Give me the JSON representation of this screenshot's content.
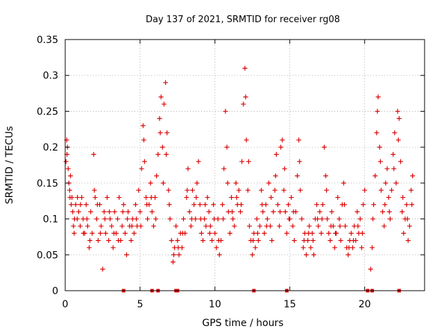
{
  "chart_data": {
    "type": "scatter",
    "title": "Day 137 of 2021, SRMTID for receiver rg08",
    "xlabel": "GPS time / hours",
    "ylabel": "SRMTID / TECUs",
    "xlim": [
      0,
      24
    ],
    "ylim": [
      0,
      0.35
    ],
    "xticks": [
      0,
      5,
      10,
      15,
      20
    ],
    "xtick_labels": [
      "0",
      "5",
      "10",
      "15",
      "20"
    ],
    "yticks": [
      0,
      0.05,
      0.1,
      0.15,
      0.2,
      0.25,
      0.3,
      0.35
    ],
    "ytick_labels": [
      "0",
      "0.05",
      "0.1",
      "0.15",
      "0.2",
      "0.25",
      "0.3",
      "0.35"
    ],
    "grid": true,
    "legend": "none",
    "marker": "+",
    "color": "#dd0000",
    "series": [
      {
        "name": "SRMTID",
        "points": [
          [
            0.05,
            0.18
          ],
          [
            0.1,
            0.21
          ],
          [
            0.15,
            0.2
          ],
          [
            0.2,
            0.17
          ],
          [
            0.25,
            0.15
          ],
          [
            0.3,
            0.14
          ],
          [
            0.35,
            0.16
          ],
          [
            0.4,
            0.12
          ],
          [
            0.45,
            0.13
          ],
          [
            0.5,
            0.11
          ],
          [
            0.55,
            0.09
          ],
          [
            0.6,
            0.08
          ],
          [
            0.7,
            0.12
          ],
          [
            0.8,
            0.1
          ],
          [
            0.9,
            0.11
          ],
          [
            1.0,
            0.09
          ],
          [
            1.1,
            0.13
          ],
          [
            1.2,
            0.1
          ],
          [
            1.3,
            0.08
          ],
          [
            1.4,
            0.12
          ],
          [
            1.5,
            0.09
          ],
          [
            1.6,
            0.06
          ],
          [
            1.7,
            0.11
          ],
          [
            1.8,
            0.08
          ],
          [
            1.9,
            0.19
          ],
          [
            2.0,
            0.13
          ],
          [
            2.1,
            0.1
          ],
          [
            2.2,
            0.07
          ],
          [
            2.3,
            0.12
          ],
          [
            2.4,
            0.09
          ],
          [
            2.5,
            0.03
          ],
          [
            2.6,
            0.11
          ],
          [
            2.7,
            0.08
          ],
          [
            2.8,
            0.13
          ],
          [
            2.9,
            0.07
          ],
          [
            3.0,
            0.1
          ],
          [
            3.1,
            0.09
          ],
          [
            3.2,
            0.06
          ],
          [
            3.3,
            0.11
          ],
          [
            3.4,
            0.08
          ],
          [
            3.5,
            0.1
          ],
          [
            3.6,
            0.13
          ],
          [
            3.7,
            0.07
          ],
          [
            3.8,
            0.09
          ],
          [
            3.9,
            0.12
          ],
          [
            4.0,
            0.08
          ],
          [
            4.1,
            0.05
          ],
          [
            4.2,
            0.11
          ],
          [
            4.3,
            0.09
          ],
          [
            4.4,
            0.07
          ],
          [
            4.5,
            0.1
          ],
          [
            4.6,
            0.08
          ],
          [
            4.7,
            0.12
          ],
          [
            4.8,
            0.09
          ],
          [
            4.9,
            0.14
          ],
          [
            5.0,
            0.11
          ],
          [
            5.1,
            0.17
          ],
          [
            5.2,
            0.23
          ],
          [
            5.3,
            0.18
          ],
          [
            5.4,
            0.13
          ],
          [
            5.5,
            0.1
          ],
          [
            5.6,
            0.12
          ],
          [
            5.7,
            0.15
          ],
          [
            5.8,
            0.11
          ],
          [
            5.9,
            0.09
          ],
          [
            6.0,
            0.13
          ],
          [
            6.1,
            0.16
          ],
          [
            6.2,
            0.19
          ],
          [
            6.3,
            0.24
          ],
          [
            6.4,
            0.27
          ],
          [
            6.5,
            0.2
          ],
          [
            6.6,
            0.26
          ],
          [
            6.7,
            0.29
          ],
          [
            6.8,
            0.22
          ],
          [
            6.9,
            0.14
          ],
          [
            7.0,
            0.1
          ],
          [
            7.1,
            0.07
          ],
          [
            7.2,
            0.04
          ],
          [
            7.3,
            0.06
          ],
          [
            7.4,
            0.09
          ],
          [
            7.5,
            0.07
          ],
          [
            7.6,
            0.05
          ],
          [
            7.7,
            0.08
          ],
          [
            7.8,
            0.06
          ],
          [
            7.9,
            0.1
          ],
          [
            8.0,
            0.08
          ],
          [
            8.1,
            0.13
          ],
          [
            8.2,
            0.17
          ],
          [
            8.3,
            0.11
          ],
          [
            8.4,
            0.09
          ],
          [
            8.5,
            0.14
          ],
          [
            8.6,
            0.12
          ],
          [
            8.7,
            0.1
          ],
          [
            8.8,
            0.15
          ],
          [
            8.9,
            0.18
          ],
          [
            9.0,
            0.12
          ],
          [
            9.1,
            0.08
          ],
          [
            9.2,
            0.07
          ],
          [
            9.3,
            0.1
          ],
          [
            9.4,
            0.09
          ],
          [
            9.5,
            0.13
          ],
          [
            9.6,
            0.11
          ],
          [
            9.7,
            0.09
          ],
          [
            9.8,
            0.07
          ],
          [
            9.9,
            0.12
          ],
          [
            10.0,
            0.08
          ],
          [
            10.1,
            0.06
          ],
          [
            10.2,
            0.1
          ],
          [
            10.3,
            0.05
          ],
          [
            10.4,
            0.07
          ],
          [
            10.5,
            0.12
          ],
          [
            10.6,
            0.17
          ],
          [
            10.7,
            0.25
          ],
          [
            10.8,
            0.2
          ],
          [
            10.9,
            0.11
          ],
          [
            11.0,
            0.08
          ],
          [
            11.1,
            0.13
          ],
          [
            11.2,
            0.1
          ],
          [
            11.3,
            0.09
          ],
          [
            11.4,
            0.15
          ],
          [
            11.5,
            0.12
          ],
          [
            11.6,
            0.14
          ],
          [
            11.7,
            0.11
          ],
          [
            11.8,
            0.18
          ],
          [
            11.9,
            0.26
          ],
          [
            12.0,
            0.31
          ],
          [
            12.1,
            0.21
          ],
          [
            12.2,
            0.14
          ],
          [
            12.3,
            0.09
          ],
          [
            12.4,
            0.07
          ],
          [
            12.5,
            0.05
          ],
          [
            12.6,
            0.08
          ],
          [
            12.7,
            0.06
          ],
          [
            12.8,
            0.1
          ],
          [
            12.9,
            0.07
          ],
          [
            13.0,
            0.09
          ],
          [
            13.1,
            0.14
          ],
          [
            13.2,
            0.11
          ],
          [
            13.3,
            0.08
          ],
          [
            13.4,
            0.12
          ],
          [
            13.5,
            0.1
          ],
          [
            13.6,
            0.15
          ],
          [
            13.7,
            0.09
          ],
          [
            13.8,
            0.07
          ],
          [
            13.9,
            0.11
          ],
          [
            14.0,
            0.14
          ],
          [
            14.1,
            0.19
          ],
          [
            14.2,
            0.12
          ],
          [
            14.3,
            0.09
          ],
          [
            14.4,
            0.2
          ],
          [
            14.5,
            0.21
          ],
          [
            14.6,
            0.14
          ],
          [
            14.7,
            0.11
          ],
          [
            14.8,
            0.08
          ],
          [
            14.9,
            0.12
          ],
          [
            15.0,
            0.1
          ],
          [
            15.1,
            0.13
          ],
          [
            15.2,
            0.09
          ],
          [
            15.3,
            0.07
          ],
          [
            15.4,
            0.11
          ],
          [
            15.5,
            0.16
          ],
          [
            15.6,
            0.21
          ],
          [
            15.7,
            0.14
          ],
          [
            15.8,
            0.1
          ],
          [
            15.9,
            0.06
          ],
          [
            16.0,
            0.08
          ],
          [
            16.1,
            0.05
          ],
          [
            16.2,
            0.07
          ],
          [
            16.3,
            0.09
          ],
          [
            16.4,
            0.06
          ],
          [
            16.5,
            0.08
          ],
          [
            16.6,
            0.05
          ],
          [
            16.7,
            0.1
          ],
          [
            16.8,
            0.12
          ],
          [
            16.9,
            0.09
          ],
          [
            17.0,
            0.11
          ],
          [
            17.1,
            0.08
          ],
          [
            17.2,
            0.12
          ],
          [
            17.3,
            0.2
          ],
          [
            17.4,
            0.16
          ],
          [
            17.5,
            0.1
          ],
          [
            17.6,
            0.08
          ],
          [
            17.7,
            0.07
          ],
          [
            17.8,
            0.11
          ],
          [
            17.9,
            0.09
          ],
          [
            18.0,
            0.06
          ],
          [
            18.1,
            0.08
          ],
          [
            18.2,
            0.13
          ],
          [
            18.3,
            0.1
          ],
          [
            18.4,
            0.07
          ],
          [
            18.5,
            0.12
          ],
          [
            18.6,
            0.15
          ],
          [
            18.7,
            0.09
          ],
          [
            18.8,
            0.06
          ],
          [
            18.9,
            0.05
          ],
          [
            19.0,
            0.07
          ],
          [
            19.1,
            0.08
          ],
          [
            19.2,
            0.06
          ],
          [
            19.3,
            0.09
          ],
          [
            19.4,
            0.07
          ],
          [
            19.5,
            0.11
          ],
          [
            19.6,
            0.08
          ],
          [
            19.7,
            0.1
          ],
          [
            19.8,
            0.06
          ],
          [
            19.9,
            0.12
          ],
          [
            20.0,
            0.14
          ],
          [
            20.4,
            0.03
          ],
          [
            20.5,
            0.06
          ],
          [
            20.6,
            0.12
          ],
          [
            20.7,
            0.16
          ],
          [
            20.8,
            0.22
          ],
          [
            20.9,
            0.27
          ],
          [
            21.0,
            0.2
          ],
          [
            21.1,
            0.14
          ],
          [
            21.2,
            0.11
          ],
          [
            21.3,
            0.09
          ],
          [
            21.4,
            0.15
          ],
          [
            21.5,
            0.17
          ],
          [
            21.6,
            0.13
          ],
          [
            21.7,
            0.1
          ],
          [
            21.8,
            0.14
          ],
          [
            21.9,
            0.19
          ],
          [
            22.0,
            0.22
          ],
          [
            22.1,
            0.15
          ],
          [
            22.2,
            0.25
          ],
          [
            22.3,
            0.24
          ],
          [
            22.4,
            0.18
          ],
          [
            22.5,
            0.11
          ],
          [
            22.6,
            0.08
          ],
          [
            22.7,
            0.1
          ],
          [
            22.8,
            0.12
          ],
          [
            22.9,
            0.07
          ],
          [
            23.0,
            0.09
          ],
          [
            23.1,
            0.14
          ],
          [
            23.2,
            0.16
          ],
          [
            0.12,
            0.19
          ],
          [
            0.32,
            0.13
          ],
          [
            0.62,
            0.1
          ],
          [
            0.82,
            0.13
          ],
          [
            1.02,
            0.12
          ],
          [
            1.22,
            0.08
          ],
          [
            1.45,
            0.1
          ],
          [
            1.65,
            0.07
          ],
          [
            1.95,
            0.14
          ],
          [
            2.15,
            0.12
          ],
          [
            2.35,
            0.08
          ],
          [
            2.65,
            0.1
          ],
          [
            2.95,
            0.11
          ],
          [
            3.25,
            0.08
          ],
          [
            3.55,
            0.07
          ],
          [
            3.85,
            0.11
          ],
          [
            4.15,
            0.1
          ],
          [
            4.45,
            0.09
          ],
          [
            4.75,
            0.1
          ],
          [
            5.05,
            0.09
          ],
          [
            5.25,
            0.21
          ],
          [
            5.45,
            0.12
          ],
          [
            5.75,
            0.13
          ],
          [
            6.05,
            0.1
          ],
          [
            6.35,
            0.22
          ],
          [
            6.55,
            0.15
          ],
          [
            6.75,
            0.19
          ],
          [
            6.95,
            0.12
          ],
          [
            7.25,
            0.05
          ],
          [
            7.55,
            0.06
          ],
          [
            7.85,
            0.08
          ],
          [
            8.15,
            0.14
          ],
          [
            8.45,
            0.1
          ],
          [
            8.75,
            0.13
          ],
          [
            9.05,
            0.1
          ],
          [
            9.35,
            0.12
          ],
          [
            9.65,
            0.08
          ],
          [
            9.95,
            0.1
          ],
          [
            10.25,
            0.07
          ],
          [
            10.55,
            0.1
          ],
          [
            10.85,
            0.15
          ],
          [
            11.15,
            0.11
          ],
          [
            11.45,
            0.13
          ],
          [
            11.75,
            0.12
          ],
          [
            12.05,
            0.27
          ],
          [
            12.25,
            0.18
          ],
          [
            12.55,
            0.07
          ],
          [
            12.85,
            0.08
          ],
          [
            13.15,
            0.12
          ],
          [
            13.45,
            0.09
          ],
          [
            13.75,
            0.13
          ],
          [
            14.05,
            0.16
          ],
          [
            14.35,
            0.11
          ],
          [
            14.65,
            0.17
          ],
          [
            14.95,
            0.1
          ],
          [
            15.25,
            0.11
          ],
          [
            15.65,
            0.18
          ],
          [
            15.95,
            0.07
          ],
          [
            16.25,
            0.08
          ],
          [
            16.55,
            0.07
          ],
          [
            16.85,
            0.1
          ],
          [
            17.15,
            0.1
          ],
          [
            17.45,
            0.14
          ],
          [
            17.75,
            0.09
          ],
          [
            18.05,
            0.08
          ],
          [
            18.35,
            0.09
          ],
          [
            18.65,
            0.12
          ],
          [
            18.95,
            0.06
          ],
          [
            19.25,
            0.07
          ],
          [
            19.55,
            0.09
          ],
          [
            19.85,
            0.08
          ],
          [
            20.55,
            0.1
          ],
          [
            20.85,
            0.25
          ],
          [
            21.05,
            0.18
          ],
          [
            21.35,
            0.12
          ],
          [
            21.65,
            0.11
          ],
          [
            21.95,
            0.17
          ],
          [
            22.25,
            0.21
          ],
          [
            22.55,
            0.13
          ],
          [
            22.85,
            0.1
          ],
          [
            23.15,
            0.12
          ]
        ]
      }
    ],
    "zero_line_markers_x": [
      3.9,
      5.8,
      6.2,
      7.4,
      7.5,
      12.6,
      14.8,
      20.2,
      20.5,
      22.3
    ]
  }
}
